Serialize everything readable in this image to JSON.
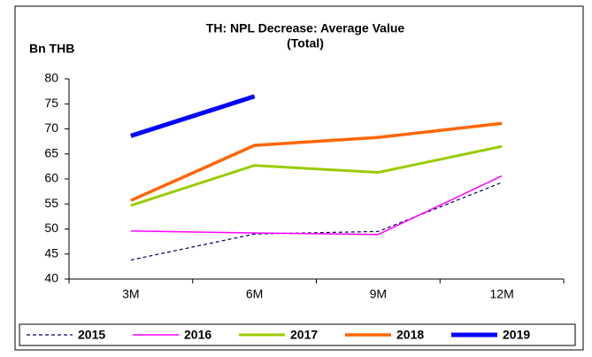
{
  "chart_data": {
    "type": "line",
    "title": [
      "TH: NPL Decrease: Average Value",
      "(Total)"
    ],
    "y_label": "Bn THB",
    "categories": [
      "3M",
      "6M",
      "9M",
      "12M"
    ],
    "series": [
      {
        "name": "2015",
        "color": "#000066",
        "style": "dashed",
        "width": 1.2,
        "values": [
          43.8,
          49.0,
          49.5,
          59.3
        ]
      },
      {
        "name": "2016",
        "color": "#ff00ff",
        "style": "solid",
        "width": 1.5,
        "values": [
          49.6,
          49.2,
          48.9,
          60.6
        ]
      },
      {
        "name": "2017",
        "color": "#99cc00",
        "style": "solid",
        "width": 3,
        "values": [
          54.7,
          62.7,
          61.3,
          66.5
        ]
      },
      {
        "name": "2018",
        "color": "#ff6600",
        "style": "solid",
        "width": 3.5,
        "values": [
          55.7,
          66.7,
          68.3,
          71.1
        ]
      },
      {
        "name": "2019",
        "color": "#0000ff",
        "style": "solid",
        "width": 5,
        "values": [
          68.6,
          76.5,
          null,
          null
        ]
      }
    ],
    "ylim": [
      40,
      80
    ],
    "yticks": [
      40,
      45,
      50,
      55,
      60,
      65,
      70,
      75,
      80
    ],
    "grid": false,
    "legend": "bottom"
  }
}
